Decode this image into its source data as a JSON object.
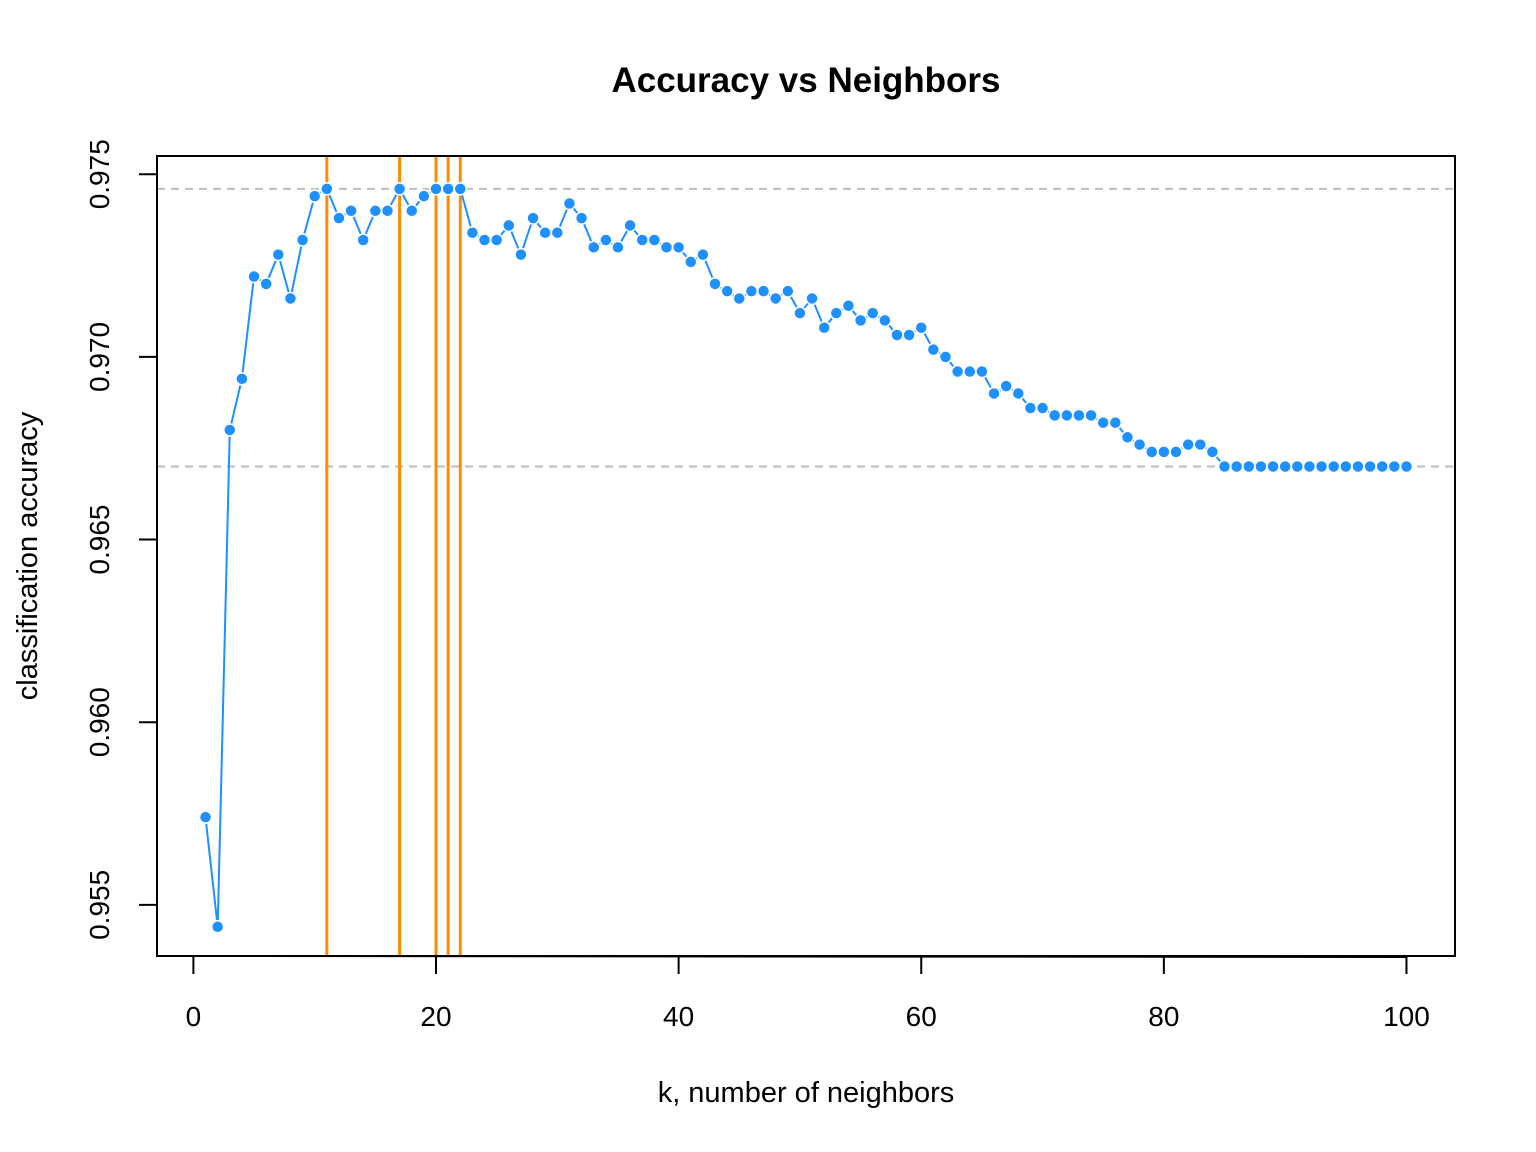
{
  "chart_data": {
    "type": "scatter",
    "title": "Accuracy vs Neighbors",
    "xlabel": "k, number of neighbors",
    "ylabel": "classification accuracy",
    "xlim": [
      -3,
      104
    ],
    "ylim": [
      0.9536,
      0.9755
    ],
    "x_ticks": [
      0,
      20,
      40,
      60,
      80,
      100
    ],
    "x_tick_labels": [
      "0",
      "20",
      "40",
      "60",
      "80",
      "100"
    ],
    "y_ticks": [
      0.955,
      0.96,
      0.965,
      0.97,
      0.975
    ],
    "y_tick_labels": [
      "0.955",
      "0.960",
      "0.965",
      "0.970",
      "0.975"
    ],
    "grid": false,
    "point_color": "#1E90FF",
    "series": [
      {
        "x": [
          1,
          2,
          3,
          4,
          5,
          6,
          7,
          8,
          9,
          10,
          11,
          12,
          13,
          14,
          15,
          16,
          17,
          18,
          19,
          20,
          21,
          22,
          23,
          24,
          25,
          26,
          27,
          28,
          29,
          30,
          31,
          32,
          33,
          34,
          35,
          36,
          37,
          38,
          39,
          40,
          41,
          42,
          43,
          44,
          45,
          46,
          47,
          48,
          49,
          50,
          51,
          52,
          53,
          54,
          55,
          56,
          57,
          58,
          59,
          60,
          61,
          62,
          63,
          64,
          65,
          66,
          67,
          68,
          69,
          70,
          71,
          72,
          73,
          74,
          75,
          76,
          77,
          78,
          79,
          80,
          81,
          82,
          83,
          84,
          85,
          86,
          87,
          88,
          89,
          90,
          91,
          92,
          93,
          94,
          95,
          96,
          97,
          98,
          99,
          100
        ],
        "values": [
          0.9574,
          0.9544,
          0.968,
          0.9694,
          0.9722,
          0.972,
          0.9728,
          0.9716,
          0.9732,
          0.9744,
          0.9746,
          0.9738,
          0.974,
          0.9732,
          0.974,
          0.974,
          0.9746,
          0.974,
          0.9744,
          0.9746,
          0.9746,
          0.9746,
          0.9734,
          0.9732,
          0.9732,
          0.9736,
          0.9728,
          0.9738,
          0.9734,
          0.9734,
          0.9742,
          0.9738,
          0.973,
          0.9732,
          0.973,
          0.9736,
          0.9732,
          0.9732,
          0.973,
          0.973,
          0.9726,
          0.9728,
          0.972,
          0.9718,
          0.9716,
          0.9718,
          0.9718,
          0.9716,
          0.9718,
          0.9712,
          0.9716,
          0.9708,
          0.9712,
          0.9714,
          0.971,
          0.9712,
          0.971,
          0.9706,
          0.9706,
          0.9708,
          0.9702,
          0.97,
          0.9696,
          0.9696,
          0.9696,
          0.969,
          0.9692,
          0.969,
          0.9686,
          0.9686,
          0.9684,
          0.9684,
          0.9684,
          0.9684,
          0.9682,
          0.9682,
          0.9678,
          0.9676,
          0.9674,
          0.9674,
          0.9674,
          0.9676,
          0.9676,
          0.9674,
          0.967,
          0.967,
          0.967,
          0.967,
          0.967,
          0.967,
          0.967,
          0.967,
          0.967,
          0.967,
          0.967,
          0.967,
          0.967,
          0.967,
          0.967,
          0.967
        ]
      }
    ],
    "reference_lines": {
      "horizontal": {
        "values": [
          0.9746,
          0.967
        ],
        "color": "#BEBEBE",
        "style": "dashed"
      },
      "vertical": {
        "values": [
          11,
          17,
          20,
          21,
          22
        ],
        "color": "#FF8C00"
      }
    }
  }
}
